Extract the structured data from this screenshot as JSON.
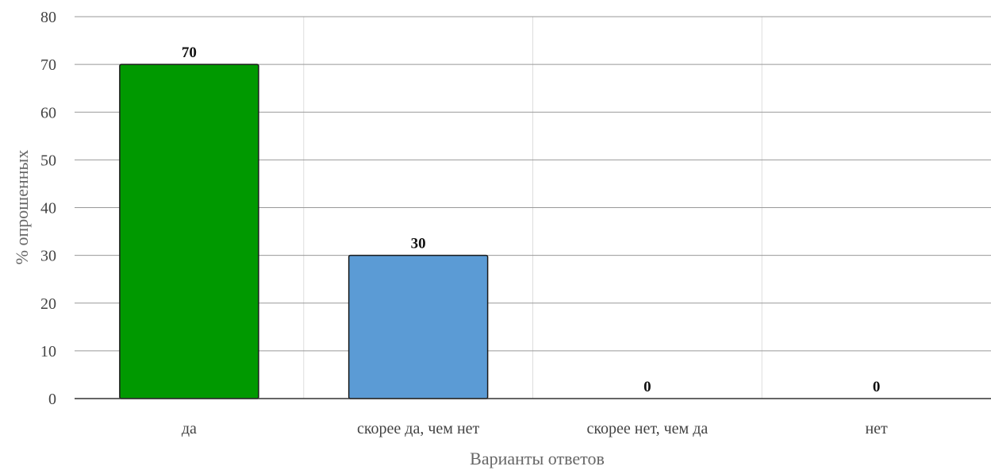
{
  "chart_data": {
    "type": "bar",
    "categories": [
      "да",
      "скорее да, чем нет",
      "скорее нет, чем да",
      "нет"
    ],
    "values": [
      70,
      30,
      0,
      0
    ],
    "bar_colors": [
      "#009900",
      "#5b9bd5",
      "#5b9bd5",
      "#5b9bd5"
    ],
    "data_labels": [
      "70",
      "30",
      "0",
      "0"
    ],
    "xlabel": "Варианты ответов",
    "ylabel": "% опрошенных",
    "ylim": [
      0,
      80
    ],
    "yticks": [
      0,
      10,
      20,
      30,
      40,
      50,
      60,
      70,
      80
    ],
    "grid": true
  }
}
